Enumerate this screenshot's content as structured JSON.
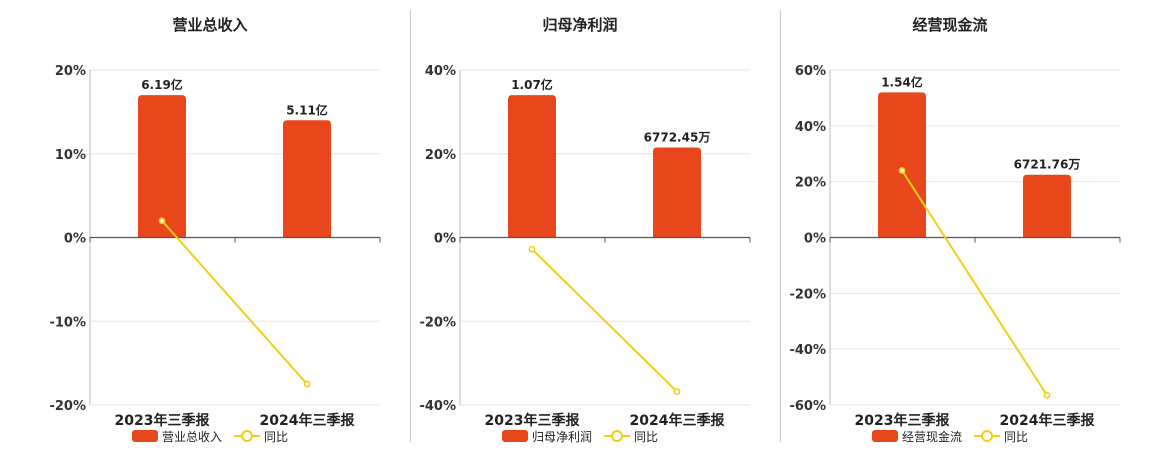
{
  "chart_data": [
    {
      "type": "bar",
      "title": "营业总收入",
      "categories": [
        "2023年三季报",
        "2024年三季报"
      ],
      "series": [
        {
          "name": "营业总收入",
          "type": "bar",
          "values": [
            17.0,
            14.0
          ],
          "labels": [
            "6.19亿",
            "5.11亿"
          ],
          "color": "#e8471c"
        },
        {
          "name": "同比",
          "type": "line",
          "values": [
            2.0,
            -17.5
          ],
          "color": "#f2cf17"
        }
      ],
      "yaxis": {
        "min": -20,
        "max": 20,
        "ticks": [
          20,
          10,
          0,
          -10,
          -20
        ],
        "tick_labels": [
          "20%",
          "10%",
          "0%",
          "-10%",
          "-20%"
        ]
      },
      "grid": true,
      "legend": "bottom"
    },
    {
      "type": "bar",
      "title": "归母净利润",
      "categories": [
        "2023年三季报",
        "2024年三季报"
      ],
      "series": [
        {
          "name": "归母净利润",
          "type": "bar",
          "values": [
            34.0,
            21.5
          ],
          "labels": [
            "1.07亿",
            "6772.45万"
          ],
          "color": "#e8471c"
        },
        {
          "name": "同比",
          "type": "line",
          "values": [
            -2.8,
            -36.8
          ],
          "color": "#f2cf17"
        }
      ],
      "yaxis": {
        "min": -40,
        "max": 40,
        "ticks": [
          40,
          20,
          0,
          -20,
          -40
        ],
        "tick_labels": [
          "40%",
          "20%",
          "0%",
          "-20%",
          "-40%"
        ]
      },
      "grid": true,
      "legend": "bottom"
    },
    {
      "type": "bar",
      "title": "经营现金流",
      "categories": [
        "2023年三季报",
        "2024年三季报"
      ],
      "series": [
        {
          "name": "经营现金流",
          "type": "bar",
          "values": [
            52.0,
            22.5
          ],
          "labels": [
            "1.54亿",
            "6721.76万"
          ],
          "color": "#e8471c"
        },
        {
          "name": "同比",
          "type": "line",
          "values": [
            24.0,
            -56.5
          ],
          "color": "#f2cf17"
        }
      ],
      "yaxis": {
        "min": -60,
        "max": 60,
        "ticks": [
          60,
          40,
          20,
          0,
          -20,
          -40,
          -60
        ],
        "tick_labels": [
          "60%",
          "40%",
          "20%",
          "0%",
          "-20%",
          "-40%",
          "-60%"
        ]
      },
      "grid": true,
      "legend": "bottom"
    }
  ]
}
